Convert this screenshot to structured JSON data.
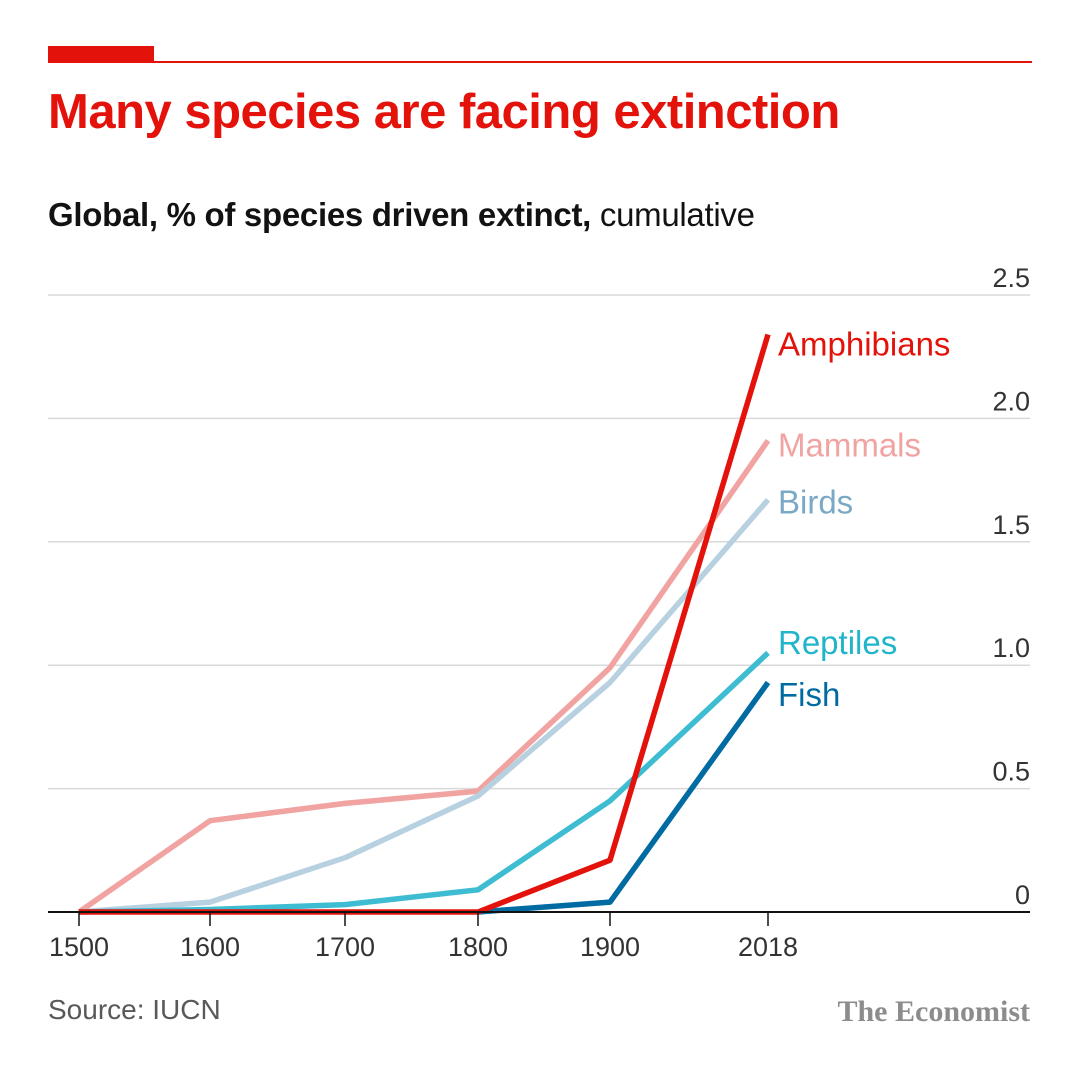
{
  "header": {
    "title": "Many species are facing extinction",
    "subtitle_bold": "Global, % of species driven extinct,",
    "subtitle_regular": " cumulative"
  },
  "footer": {
    "source": "Source: IUCN",
    "brand": "The Economist"
  },
  "colors": {
    "accent": "#e3120b",
    "gridline": "#d9d9d9",
    "axis": "#121212"
  },
  "chart_data": {
    "type": "line",
    "title": "Many species are facing extinction",
    "subtitle": "Global, % of species driven extinct, cumulative",
    "xlabel": "",
    "ylabel": "",
    "x": [
      1500,
      1600,
      1700,
      1800,
      1900,
      2018
    ],
    "x_tick_labels": [
      "1500",
      "1600",
      "1700",
      "1800",
      "1900",
      "2018"
    ],
    "ylim": [
      0,
      2.5
    ],
    "y_ticks": [
      0,
      0.5,
      1.0,
      1.5,
      2.0,
      2.5
    ],
    "y_tick_labels": [
      "0",
      "0.5",
      "1.0",
      "1.5",
      "2.0",
      "2.5"
    ],
    "y_axis_position": "right",
    "grid": true,
    "legend": "direct labels at line ends",
    "series": [
      {
        "name": "Mammals",
        "color": "#f1a3a1",
        "x": [
          1500,
          1600,
          1700,
          1800,
          1900,
          2018
        ],
        "values": [
          0,
          0.37,
          0.44,
          0.49,
          0.99,
          1.91
        ]
      },
      {
        "name": "Birds",
        "color": "#b8d1e0",
        "x": [
          1500,
          1600,
          1700,
          1800,
          1900,
          2018
        ],
        "values": [
          0,
          0.04,
          0.22,
          0.47,
          0.93,
          1.67
        ]
      },
      {
        "name": "Reptiles",
        "color": "#3ebcd2",
        "x": [
          1500,
          1600,
          1700,
          1800,
          1900,
          2018
        ],
        "values": [
          0,
          0.01,
          0.03,
          0.09,
          0.45,
          1.05
        ]
      },
      {
        "name": "Fish",
        "color": "#006ba2",
        "x": [
          1800,
          1900,
          2018
        ],
        "values": [
          0,
          0.04,
          0.93
        ]
      },
      {
        "name": "Amphibians",
        "color": "#e3120b",
        "x": [
          1500,
          1600,
          1700,
          1800,
          1900,
          2018
        ],
        "values": [
          0,
          0,
          0,
          0,
          0.21,
          2.34
        ]
      }
    ],
    "labels": [
      {
        "series": "Amphibians",
        "text": "Amphibians",
        "color": "#e3120b",
        "y": 2.3
      },
      {
        "series": "Mammals",
        "text": "Mammals",
        "color": "#f1a3a1",
        "y": 1.89
      },
      {
        "series": "Birds",
        "text": "Birds",
        "color": "#7aa9c6",
        "y": 1.66
      },
      {
        "series": "Reptiles",
        "text": "Reptiles",
        "color": "#20b5cb",
        "y": 1.09
      },
      {
        "series": "Fish",
        "text": "Fish",
        "color": "#006ba2",
        "y": 0.88
      }
    ]
  }
}
